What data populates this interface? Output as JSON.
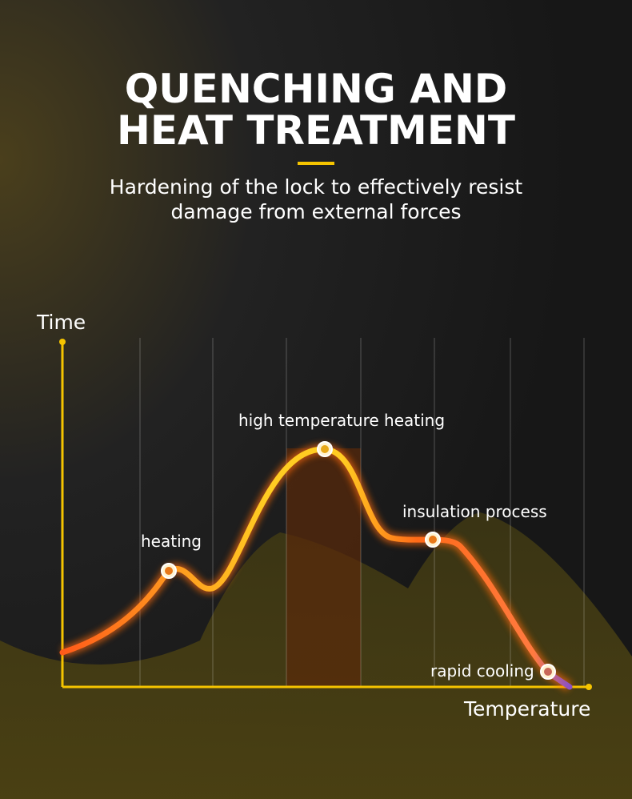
{
  "header": {
    "title_lines": [
      "QUENCHING AND",
      "HEAT TREATMENT"
    ],
    "subtitle_lines": [
      "Hardening of the lock  to effectively resist",
      "damage from external forces"
    ]
  },
  "diagram": {
    "y_axis_label": "Time",
    "x_axis_label": "Temperature",
    "points": [
      {
        "label": "heating"
      },
      {
        "label": "high temperature heating"
      },
      {
        "label": "insulation process"
      },
      {
        "label": "rapid cooling"
      }
    ]
  }
}
